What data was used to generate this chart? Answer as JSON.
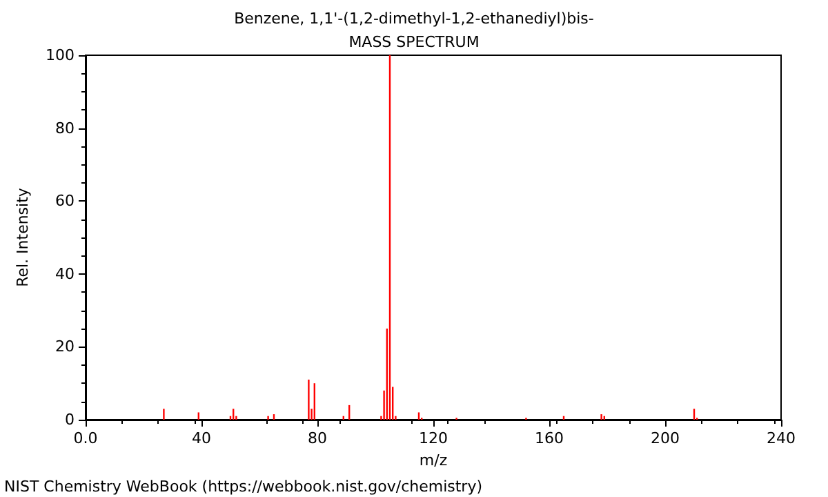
{
  "chart_data": {
    "type": "bar",
    "title": "Benzene, 1,1'-(1,2-dimethyl-1,2-ethanediyl)bis-",
    "subtitle": "MASS SPECTRUM",
    "xlabel": "m/z",
    "ylabel": "Rel. Intensity",
    "x": [
      27,
      39,
      50,
      51,
      52,
      63,
      65,
      77,
      78,
      79,
      89,
      91,
      102,
      103,
      104,
      105,
      106,
      107,
      115,
      116,
      128,
      152,
      165,
      178,
      179,
      210,
      211
    ],
    "values": [
      3,
      2,
      1,
      3,
      1,
      1,
      1.5,
      11,
      3,
      10,
      1,
      4,
      1,
      8,
      25,
      100,
      9,
      1,
      2,
      0.5,
      0.5,
      0.5,
      1,
      1.5,
      1,
      3,
      0.5
    ],
    "color": "#ff0000",
    "xlim": [
      0,
      240
    ],
    "xticks": [
      {
        "value": 0,
        "label": "0.0"
      },
      40,
      80,
      120,
      160,
      200,
      240
    ],
    "ylim": [
      0,
      100
    ],
    "yticks": [
      0,
      20,
      40,
      60,
      80,
      100
    ],
    "grid": false,
    "annotations": [
      "NIST Chemistry WebBook (https://webbook.nist.gov/chemistry)"
    ]
  }
}
